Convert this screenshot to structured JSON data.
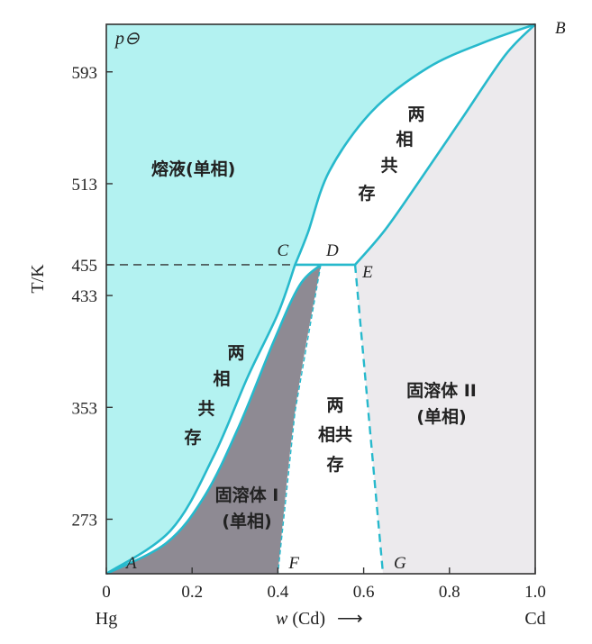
{
  "chart_data": {
    "type": "phase-diagram",
    "pressure_label": "p⊖",
    "xlabel_prefix": "w",
    "xlabel_species": "(Cd)",
    "xlabel_arrow": "⟶",
    "ylabel": "T/K",
    "x_left_component": "Hg",
    "x_right_component": "Cd",
    "xlim": [
      0,
      1.0
    ],
    "ylim": [
      234,
      627
    ],
    "x_ticks": [
      {
        "value": 0,
        "label": "0"
      },
      {
        "value": 0.2,
        "label": "0.2"
      },
      {
        "value": 0.4,
        "label": "0.4"
      },
      {
        "value": 0.6,
        "label": "0.6"
      },
      {
        "value": 0.8,
        "label": "0.8"
      },
      {
        "value": 1.0,
        "label": "1.0"
      }
    ],
    "y_ticks": [
      {
        "value": 273,
        "label": "273"
      },
      {
        "value": 353,
        "label": "353"
      },
      {
        "value": 433,
        "label": "433"
      },
      {
        "value": 455,
        "label": "455"
      },
      {
        "value": 513,
        "label": "513"
      },
      {
        "value": 593,
        "label": "593"
      }
    ],
    "points": [
      {
        "id": "A",
        "label": "A",
        "x": 0.0,
        "T": 234
      },
      {
        "id": "B",
        "label": "B",
        "x": 1.0,
        "T": 627
      },
      {
        "id": "C",
        "label": "C",
        "x": 0.44,
        "T": 455
      },
      {
        "id": "D",
        "label": "D",
        "x": 0.5,
        "T": 455
      },
      {
        "id": "E",
        "label": "E",
        "x": 0.58,
        "T": 455
      },
      {
        "id": "F",
        "label": "F",
        "x": 0.4,
        "T": 234
      },
      {
        "id": "G",
        "label": "G",
        "x": 0.645,
        "T": 234
      }
    ],
    "curves": {
      "liquidus_low": [
        [
          0.0,
          234
        ],
        [
          0.15,
          265
        ],
        [
          0.25,
          318
        ],
        [
          0.33,
          375
        ],
        [
          0.4,
          420
        ],
        [
          0.44,
          455
        ]
      ],
      "liquidus_high": [
        [
          0.44,
          455
        ],
        [
          0.47,
          478
        ],
        [
          0.52,
          522
        ],
        [
          0.62,
          565
        ],
        [
          0.75,
          596
        ],
        [
          0.88,
          614
        ],
        [
          1.0,
          627
        ]
      ],
      "solidus_low": [
        [
          0.0,
          234
        ],
        [
          0.14,
          256
        ],
        [
          0.23,
          290
        ],
        [
          0.31,
          340
        ],
        [
          0.39,
          400
        ],
        [
          0.45,
          440
        ],
        [
          0.5,
          455
        ]
      ],
      "solvus_low": [
        [
          0.5,
          455
        ],
        [
          0.44,
          350
        ],
        [
          0.4,
          234
        ]
      ],
      "solidus_high": [
        [
          0.58,
          455
        ],
        [
          0.65,
          480
        ],
        [
          0.73,
          515
        ],
        [
          0.83,
          560
        ],
        [
          0.93,
          605
        ],
        [
          1.0,
          627
        ]
      ],
      "solvus_high": [
        [
          0.58,
          455
        ],
        [
          0.645,
          234
        ]
      ],
      "eutectic_dashed": [
        [
          0.0,
          455
        ],
        [
          0.44,
          455
        ]
      ],
      "tie_line": [
        [
          0.44,
          455
        ],
        [
          0.58,
          455
        ]
      ]
    },
    "colors": {
      "liquid": "#b3f2f1",
      "curve": "#27b9cc",
      "solid_i": "#8e8a93",
      "solid_ii": "#eceaed",
      "two_phase": "#ffffff"
    },
    "regions": [
      {
        "id": "liquid",
        "label_lines": [
          "熔液(单相)"
        ]
      },
      {
        "id": "two-phase-upper",
        "label_lines": [
          "两",
          "相",
          "共",
          "存"
        ]
      },
      {
        "id": "two-phase-left",
        "label_lines": [
          "两",
          "相",
          "共",
          "存"
        ]
      },
      {
        "id": "two-phase-middle",
        "label_lines": [
          "两",
          "相共",
          "存"
        ]
      },
      {
        "id": "solid-solution-i",
        "label_lines": [
          "固溶体 I",
          "(单相)"
        ]
      },
      {
        "id": "solid-solution-ii",
        "label_lines": [
          "固溶体 II",
          "(单相)"
        ]
      }
    ]
  }
}
